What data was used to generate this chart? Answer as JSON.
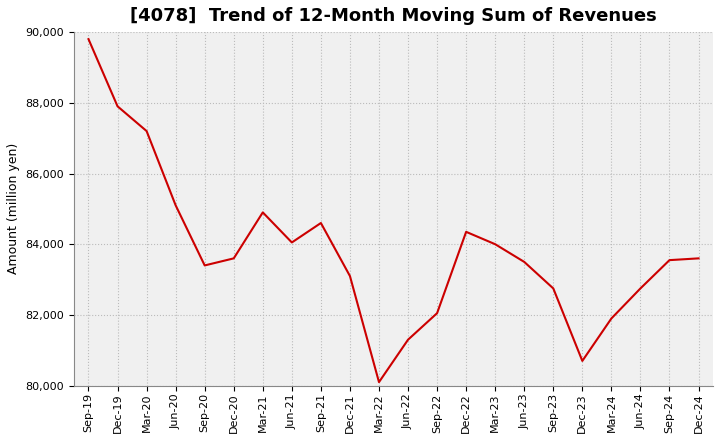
{
  "title": "[4078]  Trend of 12-Month Moving Sum of Revenues",
  "ylabel": "Amount (million yen)",
  "line_color": "#cc0000",
  "plot_bg_color": "#f0f0f0",
  "fig_bg_color": "#ffffff",
  "grid_color": "#bbbbbb",
  "ylim": [
    80000,
    90000
  ],
  "yticks": [
    80000,
    82000,
    84000,
    86000,
    88000,
    90000
  ],
  "labels": [
    "Sep-19",
    "Dec-19",
    "Mar-20",
    "Jun-20",
    "Sep-20",
    "Dec-20",
    "Mar-21",
    "Jun-21",
    "Sep-21",
    "Dec-21",
    "Mar-22",
    "Jun-22",
    "Sep-22",
    "Dec-22",
    "Mar-23",
    "Jun-23",
    "Sep-23",
    "Dec-23",
    "Mar-24",
    "Jun-24",
    "Sep-24",
    "Dec-24"
  ],
  "values": [
    89800,
    87900,
    87200,
    85100,
    83400,
    83600,
    84900,
    84050,
    84600,
    83100,
    80100,
    81300,
    82050,
    84350,
    84000,
    83500,
    82750,
    80700,
    81900,
    82750,
    83550,
    83600
  ],
  "title_fontsize": 13,
  "tick_fontsize": 8,
  "ylabel_fontsize": 9,
  "line_width": 1.5
}
